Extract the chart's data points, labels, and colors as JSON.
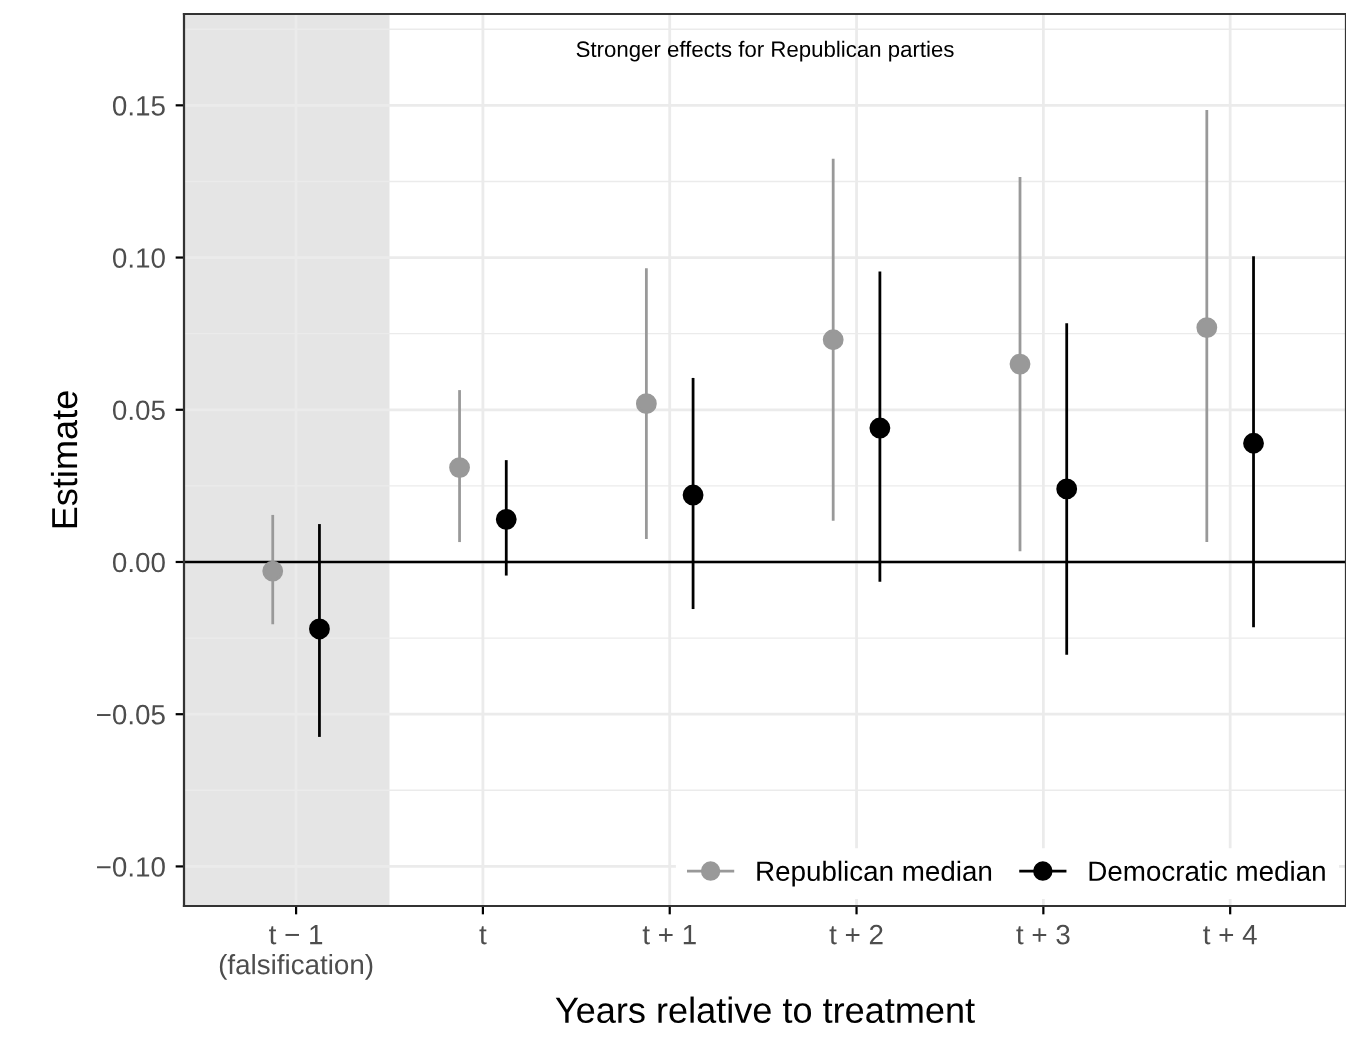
{
  "chart_data": {
    "type": "scatter",
    "xlabel": "Years relative to treatment",
    "ylabel": "Estimate",
    "categories": [
      "t − 1\n(falsification)",
      "t",
      "t + 1",
      "t + 2",
      "t + 3",
      "t + 4"
    ],
    "series": [
      {
        "name": "Republican median",
        "color": "#999999",
        "values": [
          -0.003,
          0.031,
          0.052,
          0.073,
          0.065,
          0.077
        ],
        "errors": [
          [
            -0.02,
            0.015
          ],
          [
            0.007,
            0.056
          ],
          [
            0.008,
            0.096
          ],
          [
            0.014,
            0.132
          ],
          [
            0.004,
            0.126
          ],
          [
            0.007,
            0.148
          ]
        ]
      },
      {
        "name": "Democratic median",
        "color": "#000000",
        "values": [
          -0.022,
          0.014,
          0.022,
          0.044,
          0.024,
          0.039
        ],
        "errors": [
          [
            -0.057,
            0.012
          ],
          [
            -0.004,
            0.033
          ],
          [
            -0.015,
            0.06
          ],
          [
            -0.006,
            0.095
          ],
          [
            -0.03,
            0.078
          ],
          [
            -0.021,
            0.1
          ]
        ]
      }
    ],
    "ylim": [
      -0.113,
      0.18
    ],
    "yticks": [
      {
        "value": -0.1,
        "label": "−0.10"
      },
      {
        "value": -0.05,
        "label": "−0.05"
      },
      {
        "value": 0,
        "label": "0.00"
      },
      {
        "value": 0.05,
        "label": "0.05"
      },
      {
        "value": 0.1,
        "label": "0.10"
      },
      {
        "value": 0.15,
        "label": "0.15"
      }
    ],
    "ref_lines": [
      {
        "axis": "y",
        "value": 0,
        "color": "#000000"
      }
    ],
    "annotations": [
      "Stronger effects for Republican parties"
    ],
    "grid": true,
    "legend": "bottom right",
    "marker": "circle"
  }
}
